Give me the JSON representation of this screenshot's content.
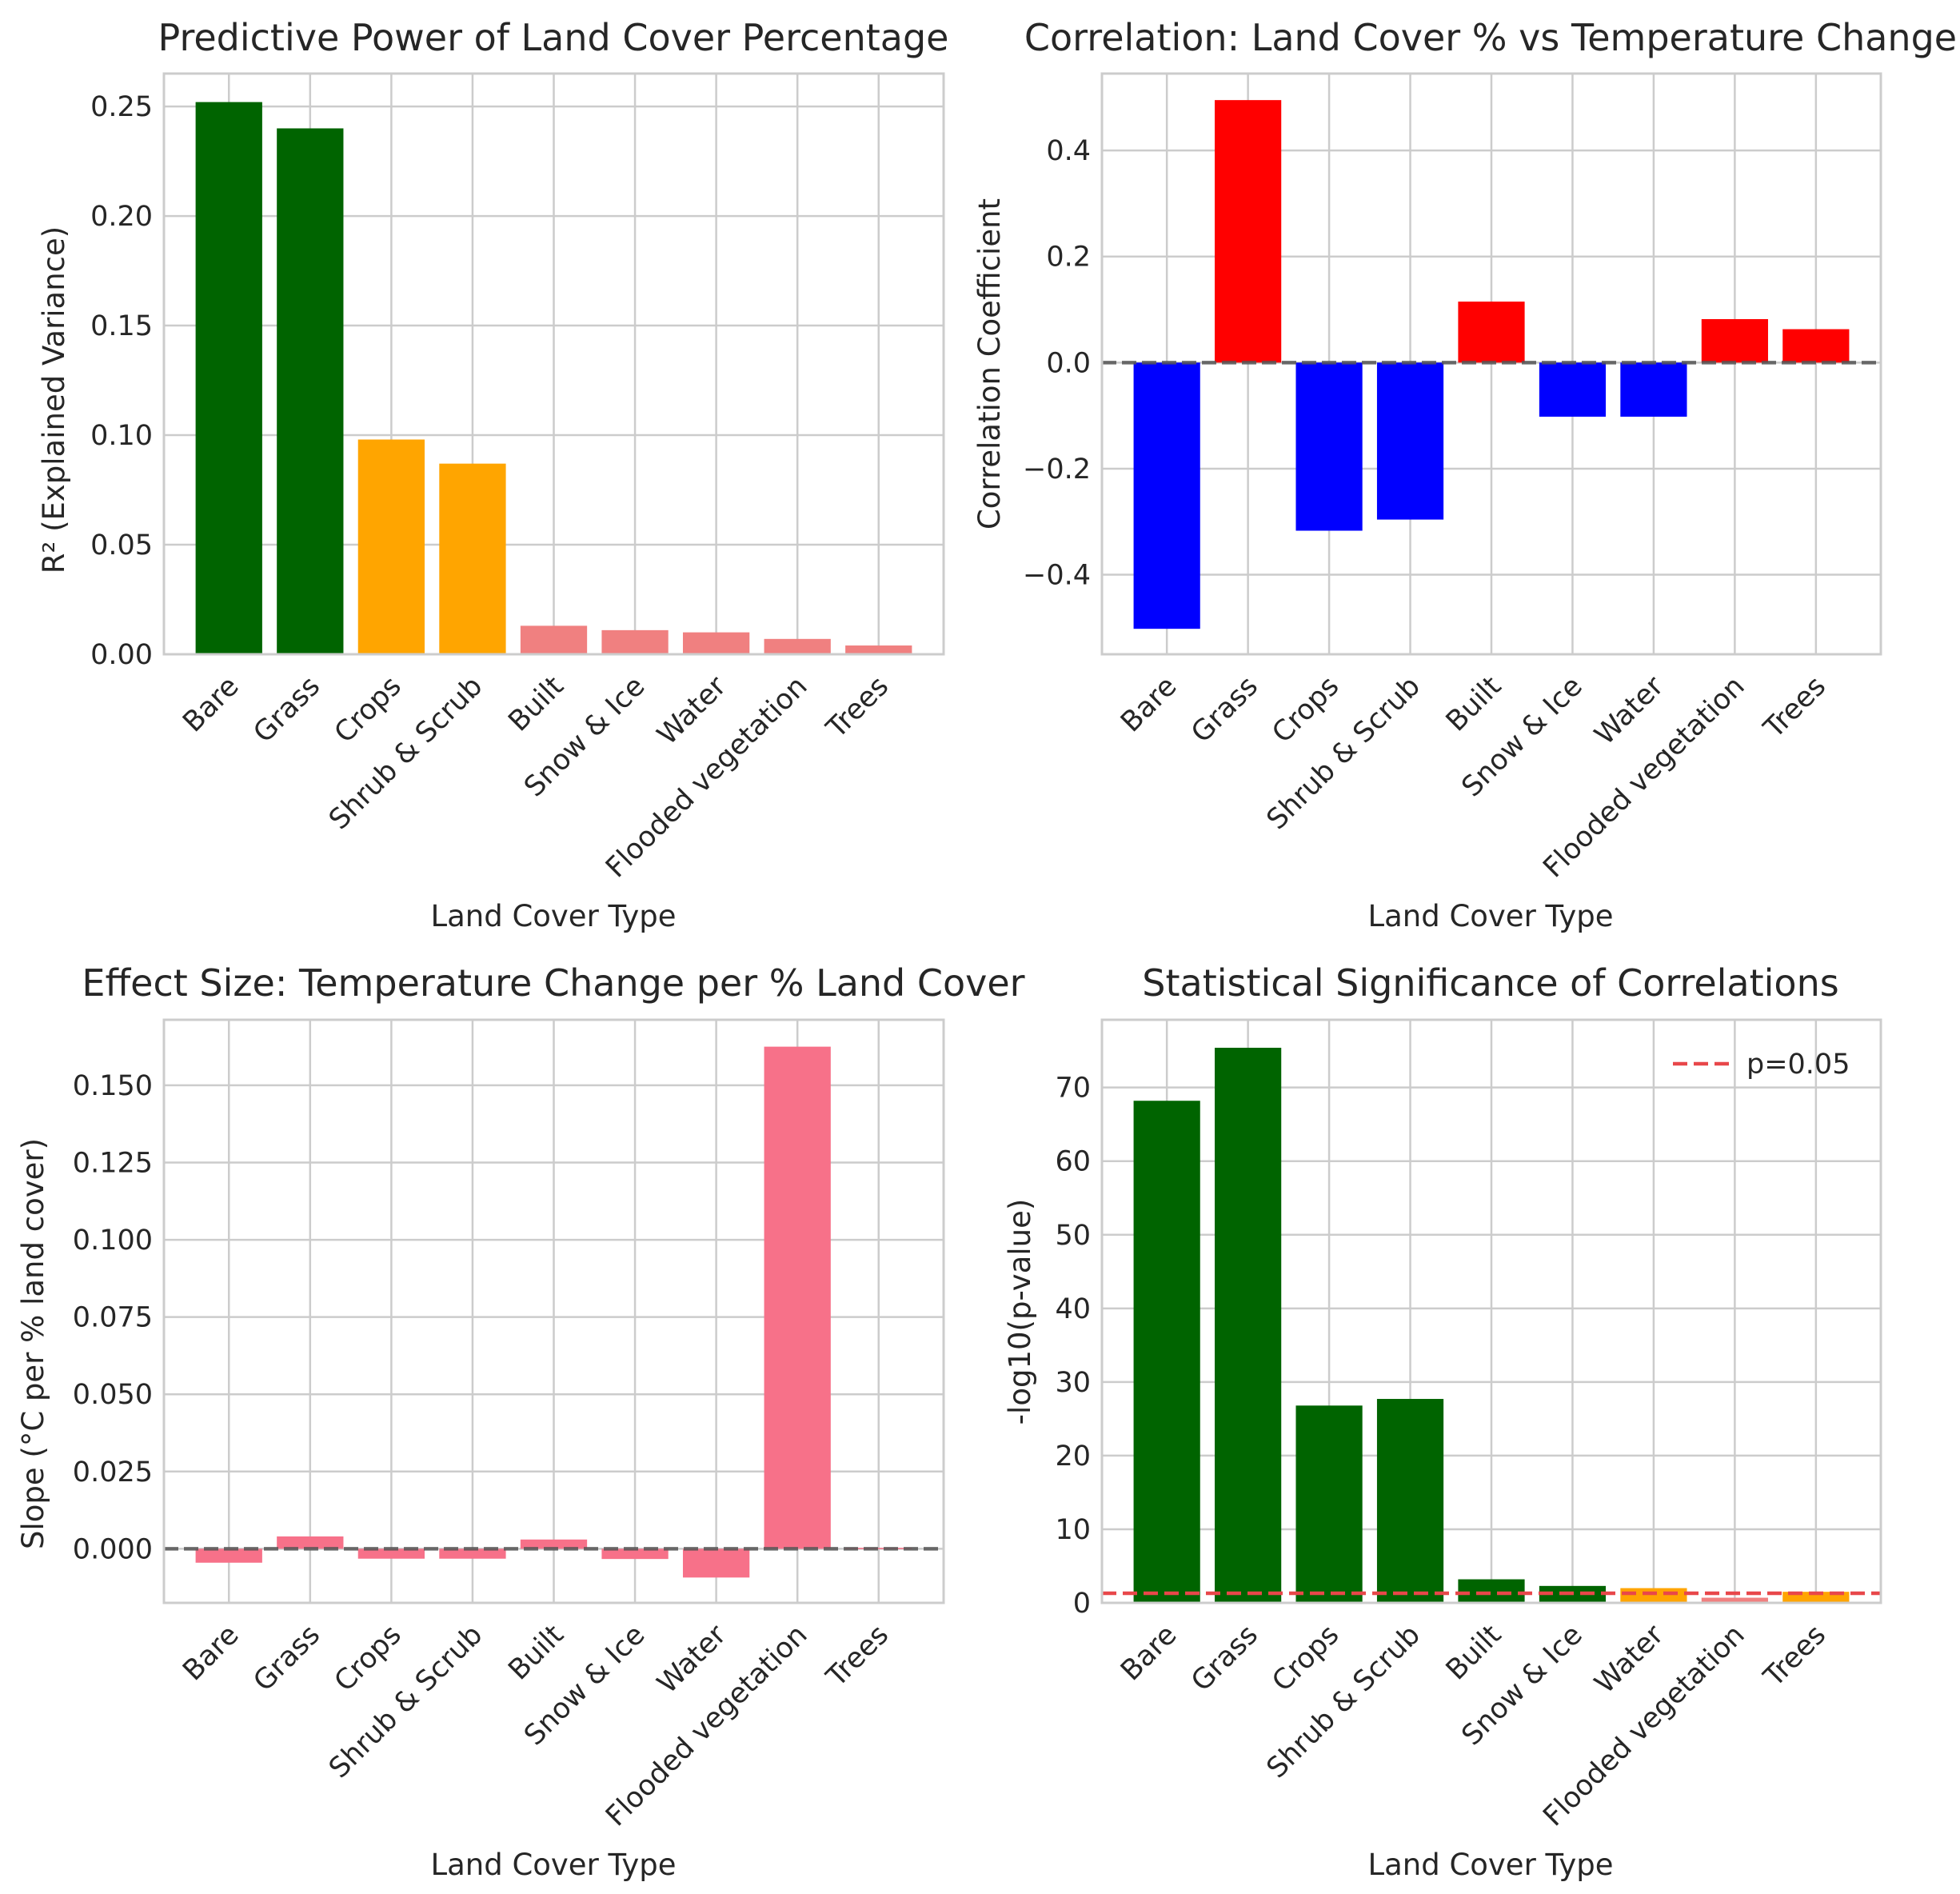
{
  "chart_data": [
    {
      "id": "r2",
      "type": "bar",
      "title": "Predictive Power of Land Cover Percentage",
      "xlabel": "Land Cover Type",
      "ylabel": "R² (Explained Variance)",
      "categories": [
        "Bare",
        "Grass",
        "Crops",
        "Shrub & Scrub",
        "Built",
        "Snow & Ice",
        "Water",
        "Flooded vegetation",
        "Trees"
      ],
      "values": [
        0.252,
        0.24,
        0.098,
        0.087,
        0.013,
        0.011,
        0.01,
        0.007,
        0.004
      ],
      "colors": [
        "#006400",
        "#006400",
        "#ffa500",
        "#ffa500",
        "#f08080",
        "#f08080",
        "#f08080",
        "#f08080",
        "#f08080"
      ],
      "ylim": [
        0,
        0.265
      ],
      "yticks": [
        0,
        0.05,
        0.1,
        0.15,
        0.2,
        0.25
      ],
      "ytick_labels": [
        "0.00",
        "0.05",
        "0.10",
        "0.15",
        "0.20",
        "0.25"
      ],
      "grid": true
    },
    {
      "id": "corr",
      "type": "bar",
      "title": "Correlation: Land Cover % vs Temperature Change",
      "xlabel": "Land Cover Type",
      "ylabel": "Correlation Coefficient",
      "categories": [
        "Bare",
        "Grass",
        "Crops",
        "Shrub & Scrub",
        "Built",
        "Snow & Ice",
        "Water",
        "Flooded vegetation",
        "Trees"
      ],
      "values": [
        -0.502,
        0.495,
        -0.317,
        -0.296,
        0.115,
        -0.102,
        -0.102,
        0.082,
        0.063
      ],
      "colors": [
        "#0000ff",
        "#ff0000",
        "#0000ff",
        "#0000ff",
        "#ff0000",
        "#0000ff",
        "#0000ff",
        "#ff0000",
        "#ff0000"
      ],
      "ylim": [
        -0.55,
        0.545
      ],
      "yticks": [
        -0.4,
        -0.2,
        0.0,
        0.2,
        0.4
      ],
      "ytick_labels": [
        "−0.4",
        "−0.2",
        "0.0",
        "0.2",
        "0.4"
      ],
      "zero_line": true,
      "grid": true
    },
    {
      "id": "slope",
      "type": "bar",
      "title": "Effect Size: Temperature Change per % Land Cover",
      "xlabel": "Land Cover Type",
      "ylabel": "Slope (°C per % land cover)",
      "categories": [
        "Bare",
        "Grass",
        "Crops",
        "Shrub & Scrub",
        "Built",
        "Snow & Ice",
        "Water",
        "Flooded vegetation",
        "Trees"
      ],
      "values": [
        -0.0045,
        0.004,
        -0.0032,
        -0.0032,
        0.003,
        -0.0033,
        -0.0093,
        0.1625,
        0.0003
      ],
      "colors": [
        "#f77189",
        "#f77189",
        "#f77189",
        "#f77189",
        "#f77189",
        "#f77189",
        "#f77189",
        "#f77189",
        "#f77189"
      ],
      "ylim": [
        -0.0175,
        0.1712
      ],
      "yticks": [
        0,
        0.025,
        0.05,
        0.075,
        0.1,
        0.125,
        0.15
      ],
      "ytick_labels": [
        "0.000",
        "0.025",
        "0.050",
        "0.075",
        "0.100",
        "0.125",
        "0.150"
      ],
      "zero_line": true,
      "grid": true
    },
    {
      "id": "pval",
      "type": "bar",
      "title": "Statistical Significance of Correlations",
      "xlabel": "Land Cover Type",
      "ylabel": "-log10(p-value)",
      "categories": [
        "Bare",
        "Grass",
        "Crops",
        "Shrub & Scrub",
        "Built",
        "Snow & Ice",
        "Water",
        "Flooded vegetation",
        "Trees"
      ],
      "values": [
        68.2,
        75.4,
        26.8,
        27.7,
        3.2,
        2.3,
        2.0,
        0.7,
        1.5
      ],
      "colors": [
        "#006400",
        "#006400",
        "#006400",
        "#006400",
        "#006400",
        "#006400",
        "#ffa500",
        "#f08080",
        "#ffa500"
      ],
      "ylim": [
        0,
        79.2
      ],
      "yticks": [
        0,
        10,
        20,
        30,
        40,
        50,
        60,
        70
      ],
      "ytick_labels": [
        "0",
        "10",
        "20",
        "30",
        "40",
        "50",
        "60",
        "70"
      ],
      "threshold": {
        "value": 1.301,
        "label": "p=0.05",
        "color": "#e8474a"
      },
      "legend_position": "top-right",
      "grid": true
    }
  ]
}
